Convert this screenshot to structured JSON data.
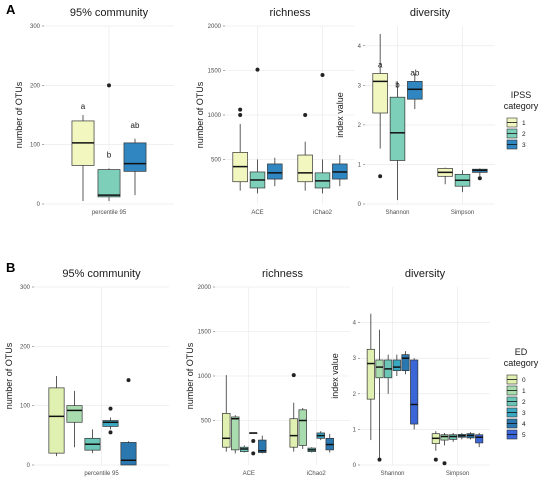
{
  "panel_labels": [
    "A",
    "B"
  ],
  "chart_data": [
    {
      "figure": "A",
      "type": "box",
      "title": "95% community",
      "xlabel": "",
      "ylabel": "number of OTUs",
      "ylim": [
        0,
        300
      ],
      "yticks": [
        0,
        100,
        200,
        300
      ],
      "categories": [
        "percentile 95"
      ],
      "series_names": [
        "1",
        "2",
        "3"
      ],
      "boxes": [
        {
          "cat": 0,
          "series": 0,
          "min": 5,
          "q1": 65,
          "median": 103,
          "q3": 140,
          "max": 150,
          "outliers": []
        },
        {
          "cat": 0,
          "series": 1,
          "min": 5,
          "q1": 12,
          "median": 15,
          "q3": 58,
          "max": 60,
          "outliers": [
            200
          ]
        },
        {
          "cat": 0,
          "series": 2,
          "min": 15,
          "q1": 55,
          "median": 68,
          "q3": 103,
          "max": 110,
          "outliers": []
        }
      ],
      "annotations": [
        {
          "cat": 0,
          "series": 0,
          "text": "a",
          "y": 160
        },
        {
          "cat": 0,
          "series": 1,
          "text": "b",
          "y": 78
        },
        {
          "cat": 0,
          "series": 2,
          "text": "ab",
          "y": 128
        }
      ]
    },
    {
      "figure": "A",
      "type": "box",
      "title": "richness",
      "xlabel": "",
      "ylabel": "number of OTUs",
      "ylim": [
        0,
        2000
      ],
      "yticks": [
        500,
        1000,
        1500,
        2000
      ],
      "categories": [
        "ACE",
        "iChao2"
      ],
      "series_names": [
        "1",
        "2",
        "3"
      ],
      "boxes": [
        {
          "cat": 0,
          "series": 0,
          "min": 150,
          "q1": 250,
          "median": 420,
          "q3": 580,
          "max": 900,
          "outliers": [
            1000,
            1060
          ]
        },
        {
          "cat": 0,
          "series": 1,
          "min": 120,
          "q1": 180,
          "median": 270,
          "q3": 360,
          "max": 500,
          "outliers": [
            1510
          ]
        },
        {
          "cat": 0,
          "series": 2,
          "min": 200,
          "q1": 280,
          "median": 350,
          "q3": 450,
          "max": 520,
          "outliers": []
        },
        {
          "cat": 1,
          "series": 0,
          "min": 150,
          "q1": 250,
          "median": 350,
          "q3": 550,
          "max": 700,
          "outliers": [
            1000
          ]
        },
        {
          "cat": 1,
          "series": 1,
          "min": 120,
          "q1": 180,
          "median": 260,
          "q3": 350,
          "max": 500,
          "outliers": [
            1450
          ]
        },
        {
          "cat": 1,
          "series": 2,
          "min": 200,
          "q1": 280,
          "median": 360,
          "q3": 450,
          "max": 550,
          "outliers": []
        }
      ],
      "annotations": []
    },
    {
      "figure": "A",
      "type": "box",
      "title": "diversity",
      "xlabel": "",
      "ylabel": "index value",
      "ylim": [
        0,
        4.5
      ],
      "yticks": [
        0,
        1,
        2,
        3,
        4
      ],
      "categories": [
        "Shannon",
        "Simpson"
      ],
      "series_names": [
        "1",
        "2",
        "3"
      ],
      "boxes": [
        {
          "cat": 0,
          "series": 0,
          "min": 1.4,
          "q1": 2.3,
          "median": 3.1,
          "q3": 3.3,
          "max": 4.3,
          "outliers": [
            0.7
          ]
        },
        {
          "cat": 0,
          "series": 1,
          "min": 0.1,
          "q1": 1.1,
          "median": 1.8,
          "q3": 2.7,
          "max": 3.1,
          "outliers": []
        },
        {
          "cat": 0,
          "series": 2,
          "min": 2.4,
          "q1": 2.65,
          "median": 2.9,
          "q3": 3.1,
          "max": 3.3,
          "outliers": []
        },
        {
          "cat": 1,
          "series": 0,
          "min": 0.5,
          "q1": 0.7,
          "median": 0.8,
          "q3": 0.9,
          "max": 0.92,
          "outliers": []
        },
        {
          "cat": 1,
          "series": 1,
          "min": 0.3,
          "q1": 0.45,
          "median": 0.6,
          "q3": 0.75,
          "max": 0.85,
          "outliers": []
        },
        {
          "cat": 1,
          "series": 2,
          "min": 0.7,
          "q1": 0.8,
          "median": 0.85,
          "q3": 0.88,
          "max": 0.9,
          "outliers": [
            0.65
          ]
        }
      ],
      "annotations": [
        {
          "cat": 0,
          "series": 0,
          "text": "a",
          "y": 3.45
        },
        {
          "cat": 0,
          "series": 1,
          "text": "b",
          "y": 2.95
        },
        {
          "cat": 0,
          "series": 2,
          "text": "ab",
          "y": 3.25
        }
      ],
      "legend": {
        "title": [
          "IPSS",
          "category"
        ],
        "position": "right",
        "items": [
          "1",
          "2",
          "3"
        ],
        "colors": [
          "#f2f7c0",
          "#7ecfb9",
          "#2f86c0"
        ]
      }
    },
    {
      "figure": "B",
      "type": "box",
      "title": "95% community",
      "xlabel": "",
      "ylabel": "number of OTUs",
      "ylim": [
        0,
        300
      ],
      "yticks": [
        0,
        100,
        200,
        300
      ],
      "categories": [
        "percentile 95"
      ],
      "series_names": [
        "0",
        "1",
        "2",
        "3",
        "4",
        "5"
      ],
      "boxes": [
        {
          "cat": 0,
          "series": 0,
          "min": 15,
          "q1": 20,
          "median": 82,
          "q3": 130,
          "max": 150,
          "outliers": []
        },
        {
          "cat": 0,
          "series": 1,
          "min": 30,
          "q1": 72,
          "median": 92,
          "q3": 100,
          "max": 125,
          "outliers": []
        },
        {
          "cat": 0,
          "series": 2,
          "min": 20,
          "q1": 25,
          "median": 35,
          "q3": 45,
          "max": 60,
          "outliers": []
        },
        {
          "cat": 0,
          "series": 3,
          "min": 60,
          "q1": 65,
          "median": 72,
          "q3": 75,
          "max": 80,
          "outliers": [
            55,
            95
          ]
        },
        {
          "cat": 0,
          "series": 4,
          "min": 0,
          "q1": 0,
          "median": 8,
          "q3": 38,
          "max": 40,
          "outliers": [
            143
          ]
        }
      ],
      "annotations": []
    },
    {
      "figure": "B",
      "type": "box",
      "title": "richness",
      "xlabel": "",
      "ylabel": "number of OTUs",
      "ylim": [
        0,
        2000
      ],
      "yticks": [
        500,
        1000,
        1500,
        2000
      ],
      "categories": [
        "ACE",
        "iChao2"
      ],
      "series_names": [
        "0",
        "1",
        "2",
        "3",
        "4",
        "5"
      ],
      "boxes": [
        {
          "cat": 0,
          "series": 0,
          "min": 150,
          "q1": 200,
          "median": 300,
          "q3": 580,
          "max": 1010,
          "outliers": []
        },
        {
          "cat": 0,
          "series": 1,
          "min": 130,
          "q1": 170,
          "median": 520,
          "q3": 540,
          "max": 560,
          "outliers": []
        },
        {
          "cat": 0,
          "series": 2,
          "min": 140,
          "q1": 150,
          "median": 180,
          "q3": 200,
          "max": 220,
          "outliers": []
        },
        {
          "cat": 0,
          "series": 3,
          "min": 360,
          "q1": 360,
          "median": 360,
          "q3": 360,
          "max": 360,
          "outliers": [
            130,
            270
          ]
        },
        {
          "cat": 0,
          "series": 4,
          "min": 130,
          "q1": 140,
          "median": 160,
          "q3": 280,
          "max": 330,
          "outliers": []
        },
        {
          "cat": 1,
          "series": 0,
          "min": 150,
          "q1": 200,
          "median": 330,
          "q3": 520,
          "max": 700,
          "outliers": [
            1010
          ]
        },
        {
          "cat": 1,
          "series": 1,
          "min": 180,
          "q1": 220,
          "median": 500,
          "q3": 620,
          "max": 640,
          "outliers": []
        },
        {
          "cat": 1,
          "series": 2,
          "min": 140,
          "q1": 150,
          "median": 170,
          "q3": 190,
          "max": 200,
          "outliers": []
        },
        {
          "cat": 1,
          "series": 3,
          "min": 280,
          "q1": 300,
          "median": 330,
          "q3": 360,
          "max": 380,
          "outliers": []
        },
        {
          "cat": 1,
          "series": 4,
          "min": 140,
          "q1": 170,
          "median": 230,
          "q3": 300,
          "max": 350,
          "outliers": []
        }
      ],
      "annotations": []
    },
    {
      "figure": "B",
      "type": "box",
      "title": "diversity",
      "xlabel": "",
      "ylabel": "index value",
      "ylim": [
        0,
        5
      ],
      "yticks": [
        0,
        1,
        2,
        3,
        4
      ],
      "categories": [
        "Shannon",
        "Simpson"
      ],
      "series_names": [
        "0",
        "1",
        "2",
        "3",
        "4",
        "5"
      ],
      "boxes": [
        {
          "cat": 0,
          "series": 0,
          "min": 0.7,
          "q1": 1.85,
          "median": 2.85,
          "q3": 3.25,
          "max": 4.25,
          "outliers": []
        },
        {
          "cat": 0,
          "series": 1,
          "min": 0.2,
          "q1": 2.45,
          "median": 2.75,
          "q3": 2.95,
          "max": 3.8,
          "outliers": [
            0.15
          ]
        },
        {
          "cat": 0,
          "series": 2,
          "min": 2.0,
          "q1": 2.45,
          "median": 2.7,
          "q3": 2.95,
          "max": 3.1,
          "outliers": []
        },
        {
          "cat": 0,
          "series": 3,
          "min": 2.5,
          "q1": 2.65,
          "median": 2.75,
          "q3": 2.95,
          "max": 3.1,
          "outliers": []
        },
        {
          "cat": 0,
          "series": 4,
          "min": 2.55,
          "q1": 2.65,
          "median": 3.0,
          "q3": 3.1,
          "max": 3.2,
          "outliers": []
        },
        {
          "cat": 0,
          "series": 5,
          "min": 1.0,
          "q1": 1.15,
          "median": 1.7,
          "q3": 2.95,
          "max": 3.0,
          "outliers": []
        },
        {
          "cat": 1,
          "series": 0,
          "min": 0.4,
          "q1": 0.6,
          "median": 0.75,
          "q3": 0.88,
          "max": 0.95,
          "outliers": [
            0.15
          ]
        },
        {
          "cat": 1,
          "series": 1,
          "min": 0.55,
          "q1": 0.7,
          "median": 0.8,
          "q3": 0.85,
          "max": 0.9,
          "outliers": [
            0.05
          ]
        },
        {
          "cat": 1,
          "series": 2,
          "min": 0.65,
          "q1": 0.72,
          "median": 0.8,
          "q3": 0.85,
          "max": 0.9,
          "outliers": []
        },
        {
          "cat": 1,
          "series": 3,
          "min": 0.72,
          "q1": 0.78,
          "median": 0.82,
          "q3": 0.86,
          "max": 0.9,
          "outliers": []
        },
        {
          "cat": 1,
          "series": 4,
          "min": 0.72,
          "q1": 0.76,
          "median": 0.83,
          "q3": 0.88,
          "max": 0.92,
          "outliers": []
        },
        {
          "cat": 1,
          "series": 5,
          "min": 0.5,
          "q1": 0.62,
          "median": 0.78,
          "q3": 0.85,
          "max": 0.9,
          "outliers": []
        }
      ],
      "annotations": [],
      "legend": {
        "title": [
          "ED",
          "category"
        ],
        "position": "right",
        "items": [
          "0",
          "1",
          "2",
          "3",
          "4",
          "5"
        ],
        "colors": [
          "#dff0b0",
          "#a8dcae",
          "#6cc6b7",
          "#3aa8c1",
          "#2b78b0",
          "#3a66d8"
        ]
      }
    }
  ]
}
